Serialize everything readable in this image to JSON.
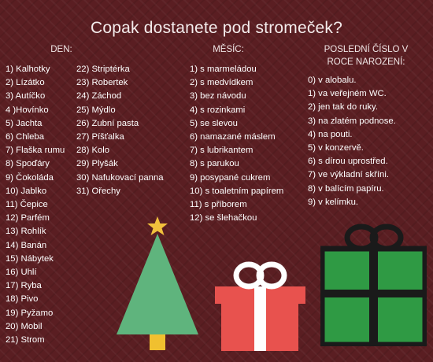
{
  "title": "Copak dostanete pod stromeček?",
  "headings": {
    "day": "DEN:",
    "month": "MĚSÍC:",
    "year_line1": "POSLEDNÍ ČÍSLO V",
    "year_line2": "ROCE NAROZENÍ:"
  },
  "day_col1": [
    "1) Kalhotky",
    "2) Lízátko",
    "3) Autíčko",
    "4 )Hovínko",
    "5) Jachta",
    "6) Chleba",
    "7) Flaška rumu",
    "8) Spoďáry",
    "9) Čokoláda",
    "10) Jablko",
    "11) Čepice",
    "12) Parfém",
    "13) Rohlík",
    "14) Banán",
    "15) Nábytek",
    "16) Uhlí",
    "17) Ryba",
    "18) Pivo",
    "19) Pyžamo",
    "20) Mobil",
    "21) Strom"
  ],
  "day_col2": [
    "22) Striptérka",
    "23) Robertek",
    "24) Záchod",
    "25) Mýdlo",
    "26) Zubní pasta",
    "27) Píšťalka",
    "28) Kolo",
    "29) Plyšák",
    "30) Nafukovací panna",
    "31) Ořechy"
  ],
  "month_col": [
    "1) s marmeládou",
    "2) s medvídkem",
    "3) bez návodu",
    "4) s rozinkami",
    "5) se slevou",
    "6) namazané máslem",
    "7) s lubrikantem",
    "8) s parukou",
    "9) posypané cukrem",
    "10) s toaletním papírem",
    "11) s příborem",
    "12) se šlehačkou"
  ],
  "year_col": [
    "0) v alobalu.",
    "1) va veřejném WC.",
    "2) jen tak do ruky.",
    "3) na zlatém podnose.",
    "4) na pouti.",
    "5) v konzervě.",
    "6) s dírou uprostřed.",
    "7) ve výkladní skříni.",
    "8) v balícím papíru.",
    "9) v kelímku."
  ],
  "decorations": {
    "tree_icon": "christmas-tree-icon",
    "red_gift_icon": "red-gift-icon",
    "green_gift_icon": "green-gift-icon",
    "colors": {
      "background": "#5a1e22",
      "tree": "#5fb47d",
      "star": "#f2c13c",
      "trunk": "#f0c02f",
      "red_gift": "#e8524e",
      "green_gift": "#2f9a44"
    }
  }
}
